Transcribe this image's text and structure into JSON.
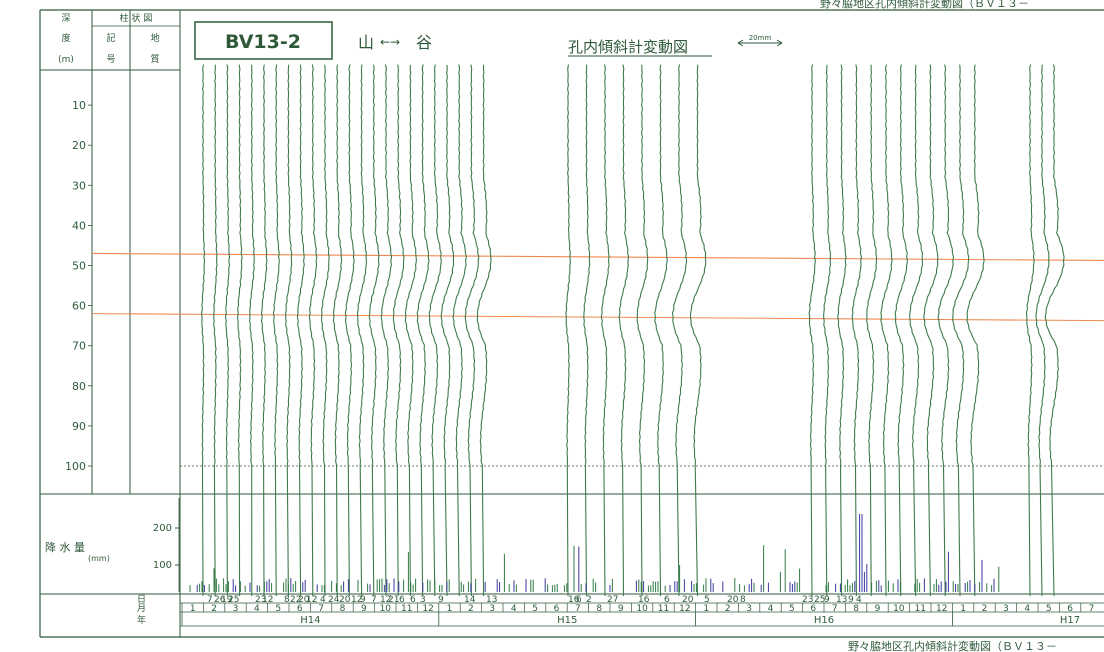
{
  "header": {
    "top_right_title": "野々脇地区孔内傾斜計変動図（ＢＶ１３－",
    "borehole_id": "BV13-2",
    "direction_mountain": "山",
    "direction_arrow": "←→",
    "direction_valley": "谷",
    "chart_title": "孔内傾斜計変動図",
    "scale_label": "20mm",
    "bottom_right_title": "野々脇地区孔内傾斜計変動図（ＢＶ１３－"
  },
  "columns": {
    "depth_label": [
      "深",
      "度",
      "(m)"
    ],
    "column_diagram": "柱 状 図",
    "symbol_label": [
      "記",
      "号"
    ],
    "geology_label": [
      "地",
      "質"
    ]
  },
  "depth_axis": {
    "ticks": [
      "10",
      "20",
      "30",
      "40",
      "50",
      "60",
      "70",
      "80",
      "90",
      "100"
    ]
  },
  "precip": {
    "label": "降 水 量",
    "unit": "(mm)",
    "ticks": [
      "100",
      "200"
    ]
  },
  "timeline": {
    "row_day": "日",
    "row_month": "月",
    "row_year": "年",
    "day_labels": [
      "7",
      "26",
      "19",
      "25",
      "23",
      "12",
      "8",
      "22",
      "20",
      "12",
      "4",
      "24",
      "20",
      "12",
      "9",
      "7",
      "12",
      "21",
      "6",
      "6",
      "3",
      "9",
      "14",
      "13",
      "16",
      "6",
      "2",
      "27",
      "16",
      "6",
      "20",
      "5",
      "20",
      "8",
      "23",
      "25",
      "9",
      "13",
      "9",
      "4"
    ],
    "months": [
      "1",
      "2",
      "3",
      "4",
      "5",
      "6",
      "7",
      "8",
      "9",
      "10",
      "11",
      "12",
      "1",
      "2",
      "3",
      "4",
      "5",
      "6",
      "7",
      "8",
      "9",
      "10",
      "11",
      "12",
      "1",
      "2",
      "3",
      "4",
      "5",
      "6",
      "7",
      "8",
      "9",
      "10",
      "11",
      "12",
      "1",
      "2",
      "3",
      "4",
      "5",
      "6",
      "7"
    ],
    "years": [
      "H14",
      "H15",
      "H16",
      "H17"
    ]
  },
  "colors": {
    "ink": "#2f5a3a",
    "curve": "#3f7a4c",
    "guide": "#f08a50",
    "bar": "#3a3aa0"
  },
  "chart_data": {
    "type": "line",
    "title": "孔内傾斜計変動図",
    "ylabel": "深度 (m)",
    "ylim": [
      0,
      100
    ],
    "orange_guides_m": [
      47,
      62
    ],
    "measurement_groups": [
      {
        "name": "H14",
        "curve_count": 24
      },
      {
        "name": "H15",
        "curve_count": 8
      },
      {
        "name": "H16",
        "curve_count": 12
      },
      {
        "name": "H17",
        "curve_count": 3
      }
    ],
    "precip_ylim": [
      0,
      200
    ]
  }
}
